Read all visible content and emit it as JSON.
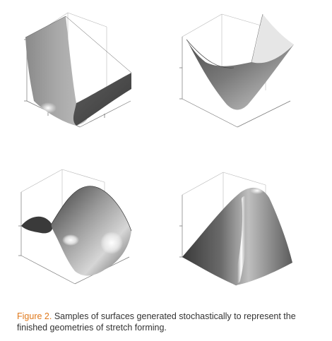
{
  "caption": {
    "label": "Figure 2.",
    "text": " Samples of surfaces generated stochastically to represent the finished geometries of stretch forming."
  },
  "panels": [
    {
      "surface": "u-shaped-trough"
    },
    {
      "surface": "bowl-paraboloid"
    },
    {
      "surface": "saddle-wave"
    },
    {
      "surface": "dome-ridge"
    }
  ],
  "colors": {
    "caption_label": "#e0791c",
    "caption_text": "#333333",
    "axis": "#777777"
  }
}
